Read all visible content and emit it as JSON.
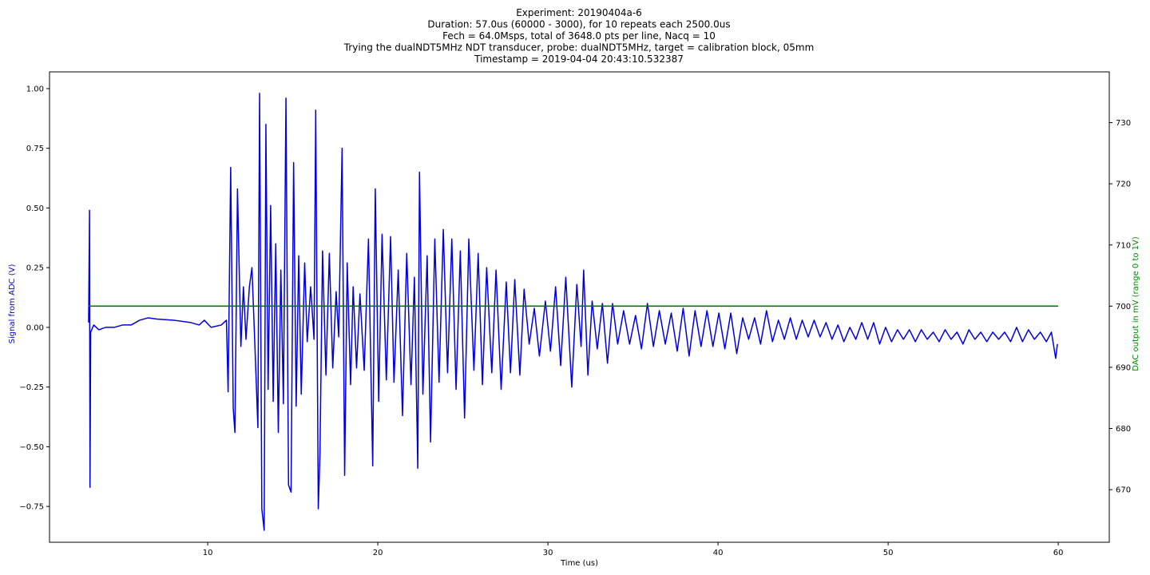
{
  "chart_data": {
    "type": "line",
    "title_lines": [
      "Experiment: 20190404a-6",
      "Duration: 57.0us (60000 - 3000), for 10 repeats each 2500.0us",
      "Fech = 64.0Msps, total of 3648.0 pts per line, Nacq = 10",
      "Trying the dualNDT5MHz NDT transducer, probe: dualNDT5MHz, target = calibration block, 05mm",
      "Timestamp = 2019-04-04 20:43:10.532387"
    ],
    "xlabel": "Time (us)",
    "ylabel_left": "Signal from ADC (V)",
    "ylabel_right": "DAC output in mV (range 0 to 1V)",
    "xlim": [
      0.7,
      63
    ],
    "ylim_left": [
      -0.9,
      1.07
    ],
    "ylim_right": [
      661.4,
      738.3
    ],
    "x_ticks": [
      10,
      20,
      30,
      40,
      50,
      60
    ],
    "y_ticks_left": [
      -0.75,
      -0.5,
      -0.25,
      0.0,
      0.25,
      0.5,
      0.75,
      1.0
    ],
    "y_ticks_left_labels": [
      "−0.75",
      "−0.50",
      "−0.25",
      "0.00",
      "0.25",
      "0.50",
      "0.75",
      "1.00"
    ],
    "y_ticks_right": [
      670,
      680,
      690,
      700,
      710,
      720,
      730
    ],
    "grid": false,
    "legend": "none",
    "series": [
      {
        "axis": "left",
        "color": "#0000dd",
        "points": [
          [
            3.0,
            0.02
          ],
          [
            3.05,
            0.49
          ],
          [
            3.08,
            -0.67
          ],
          [
            3.12,
            -0.02
          ],
          [
            3.3,
            0.01
          ],
          [
            3.6,
            -0.01
          ],
          [
            4.0,
            0.0
          ],
          [
            4.5,
            0.0
          ],
          [
            5.0,
            0.01
          ],
          [
            5.5,
            0.01
          ],
          [
            6.0,
            0.03
          ],
          [
            6.5,
            0.04
          ],
          [
            7.0,
            0.035
          ],
          [
            8.0,
            0.03
          ],
          [
            9.0,
            0.02
          ],
          [
            9.5,
            0.01
          ],
          [
            9.8,
            0.03
          ],
          [
            10.2,
            0.0
          ],
          [
            10.8,
            0.01
          ],
          [
            11.1,
            0.03
          ],
          [
            11.2,
            -0.27
          ],
          [
            11.35,
            0.67
          ],
          [
            11.5,
            -0.34
          ],
          [
            11.6,
            -0.44
          ],
          [
            11.75,
            0.58
          ],
          [
            11.95,
            -0.08
          ],
          [
            12.1,
            0.17
          ],
          [
            12.25,
            -0.05
          ],
          [
            12.45,
            0.17
          ],
          [
            12.6,
            0.25
          ],
          [
            12.75,
            -0.03
          ],
          [
            12.95,
            -0.42
          ],
          [
            13.05,
            0.98
          ],
          [
            13.18,
            -0.76
          ],
          [
            13.32,
            -0.85
          ],
          [
            13.42,
            0.85
          ],
          [
            13.55,
            -0.26
          ],
          [
            13.7,
            0.51
          ],
          [
            13.85,
            -0.31
          ],
          [
            14.0,
            0.35
          ],
          [
            14.15,
            -0.44
          ],
          [
            14.3,
            0.24
          ],
          [
            14.45,
            -0.32
          ],
          [
            14.6,
            0.96
          ],
          [
            14.75,
            -0.66
          ],
          [
            14.9,
            -0.69
          ],
          [
            15.05,
            0.69
          ],
          [
            15.2,
            -0.33
          ],
          [
            15.35,
            0.3
          ],
          [
            15.5,
            -0.28
          ],
          [
            15.7,
            0.27
          ],
          [
            15.85,
            -0.06
          ],
          [
            16.05,
            0.17
          ],
          [
            16.25,
            -0.05
          ],
          [
            16.35,
            0.91
          ],
          [
            16.5,
            -0.76
          ],
          [
            16.6,
            -0.53
          ],
          [
            16.75,
            0.32
          ],
          [
            16.95,
            -0.2
          ],
          [
            17.15,
            0.31
          ],
          [
            17.35,
            -0.17
          ],
          [
            17.55,
            0.15
          ],
          [
            17.7,
            -0.04
          ],
          [
            17.9,
            0.75
          ],
          [
            18.05,
            -0.62
          ],
          [
            18.2,
            0.27
          ],
          [
            18.4,
            -0.24
          ],
          [
            18.55,
            0.17
          ],
          [
            18.75,
            -0.17
          ],
          [
            18.95,
            0.14
          ],
          [
            19.2,
            -0.18
          ],
          [
            19.45,
            0.37
          ],
          [
            19.7,
            -0.58
          ],
          [
            19.85,
            0.58
          ],
          [
            20.05,
            -0.31
          ],
          [
            20.25,
            0.39
          ],
          [
            20.5,
            -0.22
          ],
          [
            20.75,
            0.38
          ],
          [
            20.95,
            -0.23
          ],
          [
            21.2,
            0.24
          ],
          [
            21.45,
            -0.37
          ],
          [
            21.7,
            0.31
          ],
          [
            21.95,
            -0.24
          ],
          [
            22.15,
            0.21
          ],
          [
            22.35,
            -0.59
          ],
          [
            22.45,
            0.65
          ],
          [
            22.65,
            -0.28
          ],
          [
            22.9,
            0.3
          ],
          [
            23.1,
            -0.48
          ],
          [
            23.35,
            0.37
          ],
          [
            23.6,
            -0.23
          ],
          [
            23.85,
            0.41
          ],
          [
            24.1,
            -0.19
          ],
          [
            24.35,
            0.37
          ],
          [
            24.6,
            -0.26
          ],
          [
            24.85,
            0.32
          ],
          [
            25.1,
            -0.38
          ],
          [
            25.35,
            0.37
          ],
          [
            25.65,
            -0.18
          ],
          [
            25.9,
            0.31
          ],
          [
            26.15,
            -0.24
          ],
          [
            26.4,
            0.25
          ],
          [
            26.7,
            -0.19
          ],
          [
            26.95,
            0.24
          ],
          [
            27.25,
            -0.26
          ],
          [
            27.55,
            0.19
          ],
          [
            27.8,
            -0.19
          ],
          [
            28.05,
            0.2
          ],
          [
            28.35,
            -0.2
          ],
          [
            28.6,
            0.16
          ],
          [
            28.9,
            -0.07
          ],
          [
            29.2,
            0.08
          ],
          [
            29.5,
            -0.12
          ],
          [
            29.85,
            0.11
          ],
          [
            30.15,
            -0.1
          ],
          [
            30.45,
            0.17
          ],
          [
            30.75,
            -0.16
          ],
          [
            31.05,
            0.21
          ],
          [
            31.4,
            -0.25
          ],
          [
            31.7,
            0.18
          ],
          [
            31.95,
            -0.08
          ],
          [
            32.1,
            0.24
          ],
          [
            32.35,
            -0.2
          ],
          [
            32.6,
            0.11
          ],
          [
            32.9,
            -0.09
          ],
          [
            33.2,
            0.1
          ],
          [
            33.5,
            -0.15
          ],
          [
            33.8,
            0.1
          ],
          [
            34.1,
            -0.07
          ],
          [
            34.45,
            0.07
          ],
          [
            34.8,
            -0.07
          ],
          [
            35.15,
            0.05
          ],
          [
            35.5,
            -0.09
          ],
          [
            35.85,
            0.1
          ],
          [
            36.2,
            -0.08
          ],
          [
            36.55,
            0.07
          ],
          [
            36.9,
            -0.07
          ],
          [
            37.25,
            0.06
          ],
          [
            37.6,
            -0.1
          ],
          [
            37.95,
            0.08
          ],
          [
            38.3,
            -0.12
          ],
          [
            38.65,
            0.07
          ],
          [
            39.0,
            -0.08
          ],
          [
            39.35,
            0.07
          ],
          [
            39.7,
            -0.08
          ],
          [
            40.05,
            0.06
          ],
          [
            40.4,
            -0.09
          ],
          [
            40.75,
            0.06
          ],
          [
            41.1,
            -0.11
          ],
          [
            41.45,
            0.04
          ],
          [
            41.8,
            -0.05
          ],
          [
            42.15,
            0.04
          ],
          [
            42.5,
            -0.07
          ],
          [
            42.85,
            0.07
          ],
          [
            43.2,
            -0.06
          ],
          [
            43.55,
            0.03
          ],
          [
            43.9,
            -0.05
          ],
          [
            44.25,
            0.04
          ],
          [
            44.6,
            -0.05
          ],
          [
            44.95,
            0.03
          ],
          [
            45.3,
            -0.04
          ],
          [
            45.65,
            0.03
          ],
          [
            46.0,
            -0.04
          ],
          [
            46.35,
            0.02
          ],
          [
            46.7,
            -0.05
          ],
          [
            47.05,
            0.01
          ],
          [
            47.4,
            -0.06
          ],
          [
            47.75,
            0.0
          ],
          [
            48.1,
            -0.05
          ],
          [
            48.45,
            0.02
          ],
          [
            48.8,
            -0.05
          ],
          [
            49.15,
            0.02
          ],
          [
            49.5,
            -0.07
          ],
          [
            49.85,
            0.0
          ],
          [
            50.2,
            -0.06
          ],
          [
            50.55,
            -0.01
          ],
          [
            50.9,
            -0.05
          ],
          [
            51.25,
            -0.01
          ],
          [
            51.6,
            -0.06
          ],
          [
            51.95,
            -0.01
          ],
          [
            52.3,
            -0.05
          ],
          [
            52.65,
            -0.02
          ],
          [
            53.0,
            -0.06
          ],
          [
            53.35,
            -0.01
          ],
          [
            53.7,
            -0.05
          ],
          [
            54.05,
            -0.02
          ],
          [
            54.4,
            -0.07
          ],
          [
            54.75,
            -0.01
          ],
          [
            55.1,
            -0.05
          ],
          [
            55.45,
            -0.02
          ],
          [
            55.8,
            -0.06
          ],
          [
            56.15,
            -0.02
          ],
          [
            56.5,
            -0.05
          ],
          [
            56.85,
            -0.02
          ],
          [
            57.2,
            -0.06
          ],
          [
            57.55,
            0.0
          ],
          [
            57.9,
            -0.06
          ],
          [
            58.25,
            -0.01
          ],
          [
            58.6,
            -0.05
          ],
          [
            58.95,
            -0.02
          ],
          [
            59.3,
            -0.06
          ],
          [
            59.6,
            -0.02
          ],
          [
            59.85,
            -0.13
          ],
          [
            59.95,
            -0.07
          ]
        ]
      },
      {
        "axis": "right",
        "color": "#007700",
        "points": [
          [
            3.0,
            700
          ],
          [
            60.0,
            700
          ]
        ]
      }
    ],
    "colors": {
      "left_axis_label": "#0000dd",
      "right_axis_label": "#008800",
      "signal_line": "#0000dd",
      "dac_line": "#007700"
    }
  }
}
